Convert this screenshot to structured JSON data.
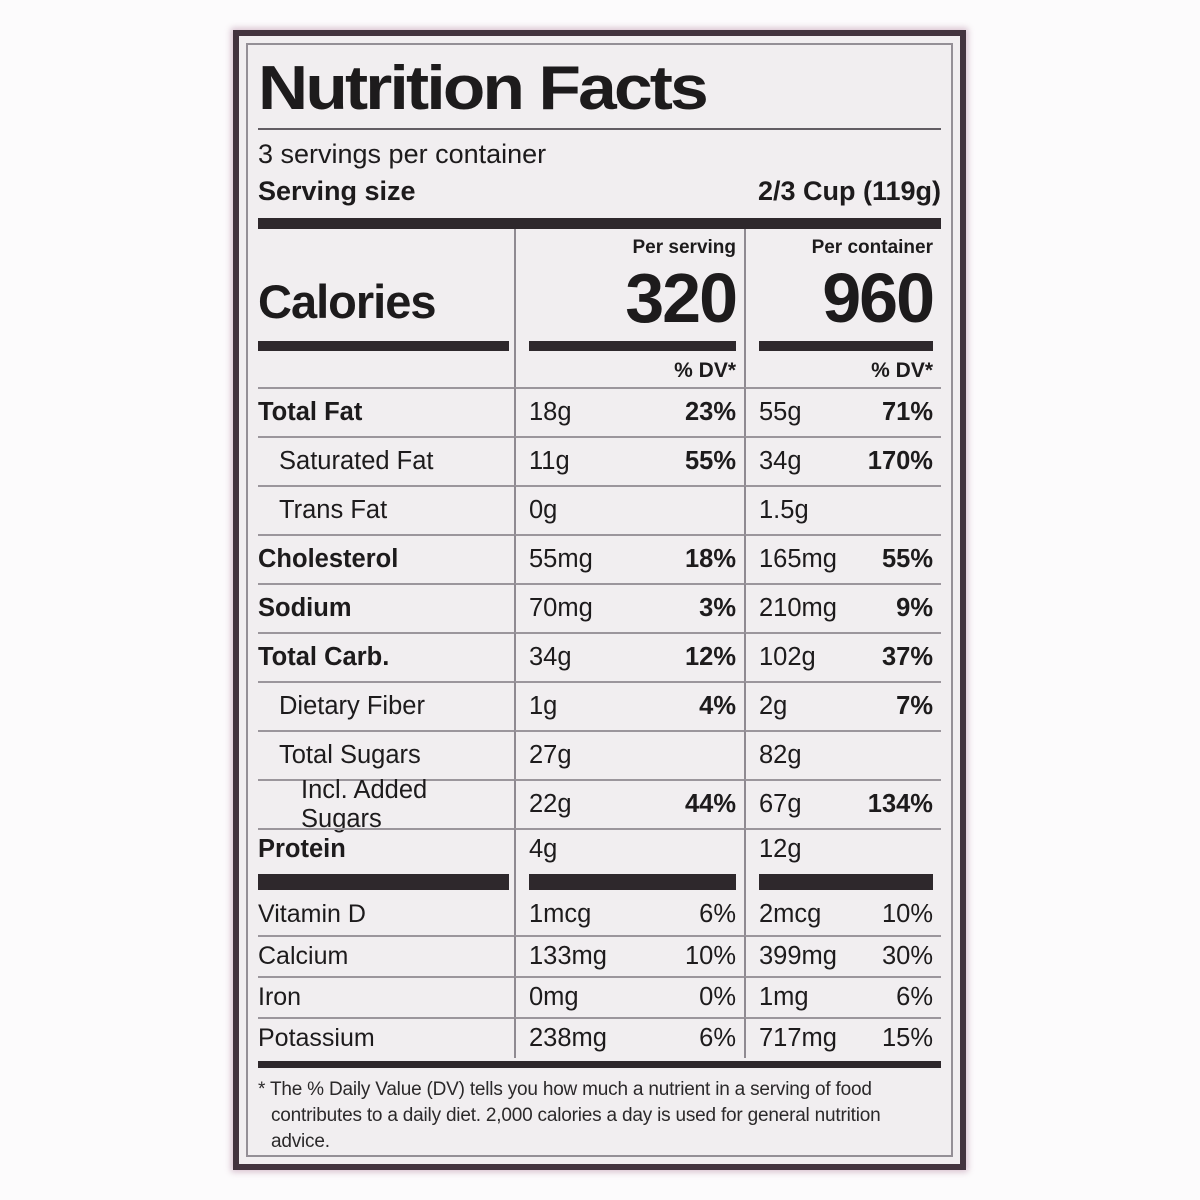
{
  "label": {
    "title": "Nutrition Facts",
    "servings_per_container": "3 servings per container",
    "serving_size_label": "Serving size",
    "serving_size_value": "2/3 Cup (119g)",
    "calories_label": "Calories",
    "per_serving_header": "Per serving",
    "per_container_header": "Per container",
    "calories_per_serving": "320",
    "calories_per_container": "960",
    "dv_header": "% DV*",
    "nutrient_rows": [
      {
        "name": "Total Fat",
        "bold": true,
        "indent": 0,
        "ps_amount": "18g",
        "ps_dv": "23%",
        "pc_amount": "55g",
        "pc_dv": "71%"
      },
      {
        "name": "Saturated Fat",
        "bold": false,
        "indent": 1,
        "ps_amount": "11g",
        "ps_dv": "55%",
        "pc_amount": "34g",
        "pc_dv": "170%"
      },
      {
        "name": "Trans Fat",
        "bold": false,
        "indent": 1,
        "ps_amount": "0g",
        "ps_dv": "",
        "pc_amount": "1.5g",
        "pc_dv": ""
      },
      {
        "name": "Cholesterol",
        "bold": true,
        "indent": 0,
        "ps_amount": "55mg",
        "ps_dv": "18%",
        "pc_amount": "165mg",
        "pc_dv": "55%"
      },
      {
        "name": "Sodium",
        "bold": true,
        "indent": 0,
        "ps_amount": "70mg",
        "ps_dv": "3%",
        "pc_amount": "210mg",
        "pc_dv": "9%"
      },
      {
        "name": "Total Carb.",
        "bold": true,
        "indent": 0,
        "ps_amount": "34g",
        "ps_dv": "12%",
        "pc_amount": "102g",
        "pc_dv": "37%"
      },
      {
        "name": "Dietary Fiber",
        "bold": false,
        "indent": 1,
        "ps_amount": "1g",
        "ps_dv": "4%",
        "pc_amount": "2g",
        "pc_dv": "7%"
      },
      {
        "name": "Total Sugars",
        "bold": false,
        "indent": 1,
        "ps_amount": "27g",
        "ps_dv": "",
        "pc_amount": "82g",
        "pc_dv": ""
      },
      {
        "name": "Incl. Added Sugars",
        "bold": false,
        "indent": 2,
        "ps_amount": "22g",
        "ps_dv": "44%",
        "pc_amount": "67g",
        "pc_dv": "134%"
      },
      {
        "name": "Protein",
        "bold": true,
        "indent": 0,
        "ps_amount": "4g",
        "ps_dv": "",
        "pc_amount": "12g",
        "pc_dv": ""
      }
    ],
    "vitamin_rows": [
      {
        "name": "Vitamin D",
        "ps_amount": "1mcg",
        "ps_dv": "6%",
        "pc_amount": "2mcg",
        "pc_dv": "10%"
      },
      {
        "name": "Calcium",
        "ps_amount": "133mg",
        "ps_dv": "10%",
        "pc_amount": "399mg",
        "pc_dv": "30%"
      },
      {
        "name": "Iron",
        "ps_amount": "0mg",
        "ps_dv": "0%",
        "pc_amount": "1mg",
        "pc_dv": "6%"
      },
      {
        "name": "Potassium",
        "ps_amount": "238mg",
        "ps_dv": "6%",
        "pc_amount": "717mg",
        "pc_dv": "15%"
      }
    ],
    "footnote_marker": "*",
    "footnote": "The % Daily Value (DV) tells you how much a nutrient in a serving of food contributes to a daily diet. 2,000 calories a day is used for general nutrition advice."
  },
  "colors": {
    "label_background": "#f1eef0",
    "ink": "#1d1b1c",
    "outer_border": "#43343e",
    "rule_gray": "#9b969c"
  }
}
